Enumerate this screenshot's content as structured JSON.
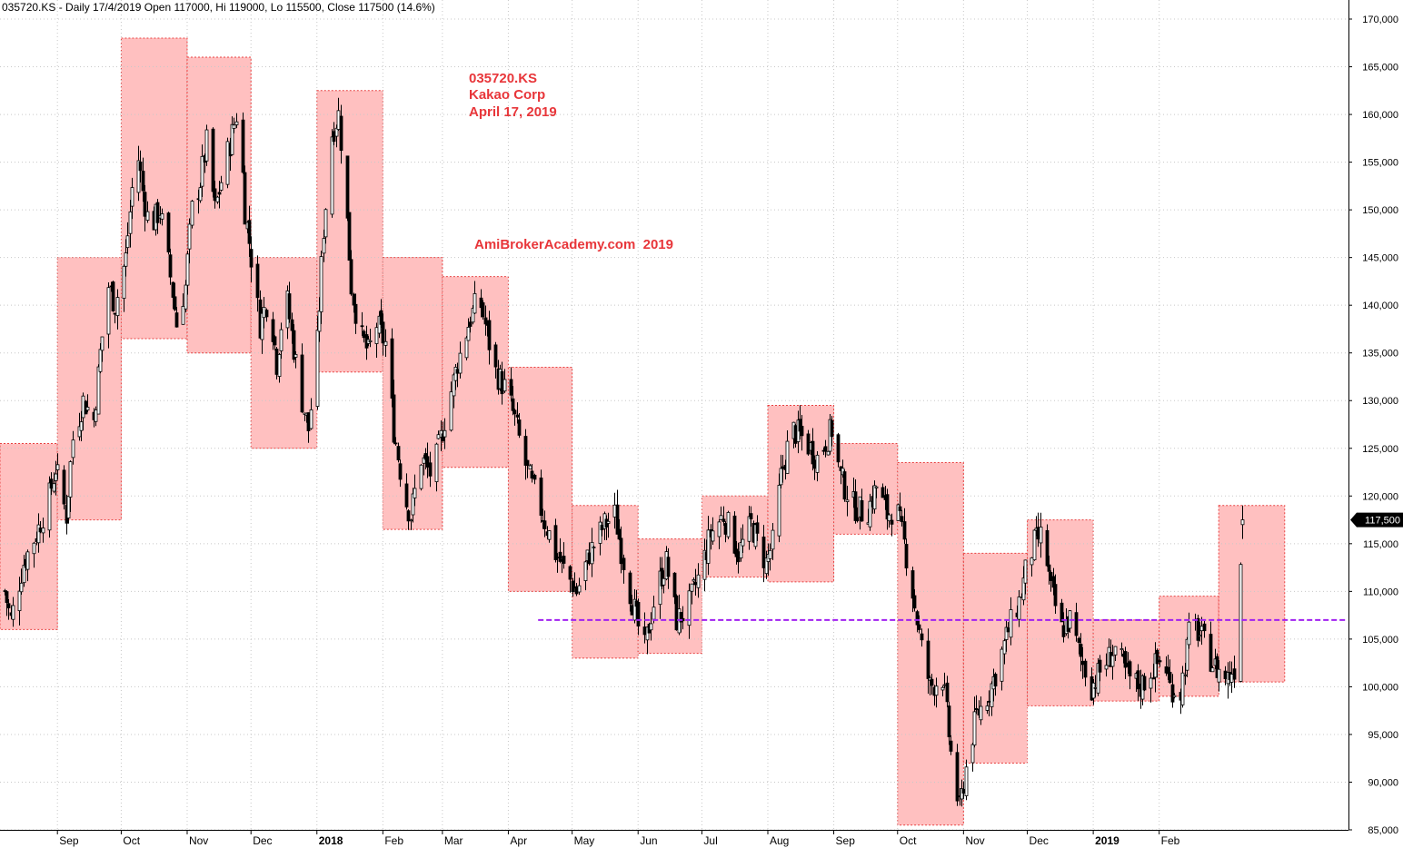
{
  "header": {
    "title": "035720.KS - Daily 17/4/2019 Open 117000, Hi 119000, Lo 115500, Close 117500 (14.6%)"
  },
  "annotations": {
    "ticker": "035720.KS",
    "company": "Kakao Corp",
    "date": "April 17, 2019",
    "watermark": "AmiBrokerAcademy.com  2019"
  },
  "colors": {
    "box_fill": "#ffc0c0",
    "box_border": "#e84040",
    "support_line": "#a020f0",
    "annotation_text": "#e8363a",
    "grid": "#c8c8c8",
    "candle": "#000000"
  },
  "chart_data": {
    "type": "candlestick",
    "ylim": [
      85000,
      172000
    ],
    "y_ticks": [
      {
        "value": 85000,
        "label": "85,000"
      },
      {
        "value": 90000,
        "label": "90,000"
      },
      {
        "value": 95000,
        "label": "95,000"
      },
      {
        "value": 100000,
        "label": "100,000"
      },
      {
        "value": 105000,
        "label": "105,000"
      },
      {
        "value": 110000,
        "label": "110,000"
      },
      {
        "value": 115000,
        "label": "115,000"
      },
      {
        "value": 120000,
        "label": "120,000"
      },
      {
        "value": 125000,
        "label": "125,000"
      },
      {
        "value": 130000,
        "label": "130,000"
      },
      {
        "value": 135000,
        "label": "135,000"
      },
      {
        "value": 140000,
        "label": "140,000"
      },
      {
        "value": 145000,
        "label": "145,000"
      },
      {
        "value": 150000,
        "label": "150,000"
      },
      {
        "value": 155000,
        "label": "155,000"
      },
      {
        "value": 160000,
        "label": "160,000"
      },
      {
        "value": 165000,
        "label": "165,000"
      },
      {
        "value": 170000,
        "label": "170,000"
      }
    ],
    "x_ticks": [
      {
        "date": "2017-09-01",
        "label": "Sep",
        "bold": false
      },
      {
        "date": "2017-10-01",
        "label": "Oct",
        "bold": false
      },
      {
        "date": "2017-11-01",
        "label": "Nov",
        "bold": false
      },
      {
        "date": "2017-12-01",
        "label": "Dec",
        "bold": false
      },
      {
        "date": "2018-01-01",
        "label": "2018",
        "bold": true
      },
      {
        "date": "2018-02-01",
        "label": "Feb",
        "bold": false
      },
      {
        "date": "2018-03-01",
        "label": "Mar",
        "bold": false
      },
      {
        "date": "2018-04-01",
        "label": "Apr",
        "bold": false
      },
      {
        "date": "2018-05-01",
        "label": "May",
        "bold": false
      },
      {
        "date": "2018-06-01",
        "label": "Jun",
        "bold": false
      },
      {
        "date": "2018-07-01",
        "label": "Jul",
        "bold": false
      },
      {
        "date": "2018-08-01",
        "label": "Aug",
        "bold": false
      },
      {
        "date": "2018-09-01",
        "label": "Sep",
        "bold": false
      },
      {
        "date": "2018-10-01",
        "label": "Oct",
        "bold": false
      },
      {
        "date": "2018-11-01",
        "label": "Nov",
        "bold": false
      },
      {
        "date": "2018-12-01",
        "label": "Dec",
        "bold": false
      },
      {
        "date": "2019-01-01",
        "label": "2019",
        "bold": true
      },
      {
        "date": "2019-02-01",
        "label": "Feb",
        "bold": false
      }
    ],
    "x_start": "2017-08-05",
    "x_end": "2019-05-01",
    "last_price": {
      "value": 117500,
      "label": "117,500"
    },
    "support_line": {
      "value": 107000,
      "from": "2018-04-15",
      "to": "2019-04-30"
    },
    "monthly_boxes": [
      {
        "from": "2017-08-05",
        "to": "2017-08-31",
        "low": 106000,
        "high": 125500
      },
      {
        "from": "2017-09-01",
        "to": "2017-09-30",
        "low": 117500,
        "high": 145000
      },
      {
        "from": "2017-10-01",
        "to": "2017-10-31",
        "low": 136500,
        "high": 168000
      },
      {
        "from": "2017-11-01",
        "to": "2017-11-30",
        "low": 135000,
        "high": 166000
      },
      {
        "from": "2017-12-01",
        "to": "2017-12-31",
        "low": 125000,
        "high": 145000
      },
      {
        "from": "2018-01-01",
        "to": "2018-01-31",
        "low": 133000,
        "high": 162500
      },
      {
        "from": "2018-02-01",
        "to": "2018-02-28",
        "low": 116500,
        "high": 145000
      },
      {
        "from": "2018-03-01",
        "to": "2018-03-31",
        "low": 123000,
        "high": 143000
      },
      {
        "from": "2018-04-01",
        "to": "2018-04-30",
        "low": 110000,
        "high": 133500
      },
      {
        "from": "2018-05-01",
        "to": "2018-05-31",
        "low": 103000,
        "high": 119000
      },
      {
        "from": "2018-06-01",
        "to": "2018-06-30",
        "low": 103500,
        "high": 115500
      },
      {
        "from": "2018-07-01",
        "to": "2018-07-31",
        "low": 111500,
        "high": 120000
      },
      {
        "from": "2018-08-01",
        "to": "2018-08-31",
        "low": 111000,
        "high": 129500
      },
      {
        "from": "2018-09-01",
        "to": "2018-09-30",
        "low": 116000,
        "high": 125500
      },
      {
        "from": "2018-10-01",
        "to": "2018-10-31",
        "low": 85500,
        "high": 123500
      },
      {
        "from": "2018-11-01",
        "to": "2018-11-30",
        "low": 92000,
        "high": 114000
      },
      {
        "from": "2018-12-01",
        "to": "2018-12-31",
        "low": 98000,
        "high": 117500
      },
      {
        "from": "2019-01-01",
        "to": "2019-01-31",
        "low": 98500,
        "high": 107000
      },
      {
        "from": "2019-02-01",
        "to": "2019-02-28",
        "low": 99000,
        "high": 109500
      },
      {
        "from": "2019-03-01",
        "to": "2019-03-31",
        "low": 100500,
        "high": 119000
      }
    ],
    "close_path": [
      [
        "2017-08-07",
        110000
      ],
      [
        "2017-08-10",
        107000
      ],
      [
        "2017-08-16",
        113000
      ],
      [
        "2017-08-22",
        116000
      ],
      [
        "2017-08-28",
        120000
      ],
      [
        "2017-08-31",
        123000
      ],
      [
        "2017-09-05",
        118000
      ],
      [
        "2017-09-08",
        126000
      ],
      [
        "2017-09-13",
        130000
      ],
      [
        "2017-09-18",
        128000
      ],
      [
        "2017-09-21",
        135000
      ],
      [
        "2017-09-25",
        142000
      ],
      [
        "2017-09-28",
        140000
      ],
      [
        "2017-10-03",
        145000
      ],
      [
        "2017-10-08",
        157000
      ],
      [
        "2017-10-11",
        152000
      ],
      [
        "2017-10-14",
        148000
      ],
      [
        "2017-10-19",
        150000
      ],
      [
        "2017-10-24",
        143000
      ],
      [
        "2017-10-27",
        138000
      ],
      [
        "2017-10-31",
        142000
      ],
      [
        "2017-11-03",
        150000
      ],
      [
        "2017-11-07",
        153000
      ],
      [
        "2017-11-10",
        157000
      ],
      [
        "2017-11-14",
        150000
      ],
      [
        "2017-11-18",
        154000
      ],
      [
        "2017-11-22",
        158000
      ],
      [
        "2017-11-25",
        161000
      ],
      [
        "2017-11-28",
        150000
      ],
      [
        "2017-12-01",
        145000
      ],
      [
        "2017-12-05",
        138000
      ],
      [
        "2017-12-09",
        141000
      ],
      [
        "2017-12-13",
        134000
      ],
      [
        "2017-12-17",
        142000
      ],
      [
        "2017-12-20",
        137000
      ],
      [
        "2017-12-24",
        131000
      ],
      [
        "2017-12-28",
        127000
      ],
      [
        "2018-01-01",
        136000
      ],
      [
        "2018-01-04",
        148000
      ],
      [
        "2018-01-08",
        158000
      ],
      [
        "2018-01-11",
        160000
      ],
      [
        "2018-01-14",
        152000
      ],
      [
        "2018-01-17",
        142000
      ],
      [
        "2018-01-21",
        137000
      ],
      [
        "2018-01-25",
        135000
      ],
      [
        "2018-01-29",
        138000
      ],
      [
        "2018-02-02",
        136000
      ],
      [
        "2018-02-06",
        127000
      ],
      [
        "2018-02-11",
        120000
      ],
      [
        "2018-02-14",
        118000
      ],
      [
        "2018-02-19",
        124000
      ],
      [
        "2018-02-24",
        122000
      ],
      [
        "2018-02-28",
        126000
      ],
      [
        "2018-03-04",
        130000
      ],
      [
        "2018-03-08",
        134000
      ],
      [
        "2018-03-13",
        138000
      ],
      [
        "2018-03-18",
        141000
      ],
      [
        "2018-03-22",
        137000
      ],
      [
        "2018-03-26",
        133000
      ],
      [
        "2018-03-31",
        131000
      ],
      [
        "2018-04-04",
        128000
      ],
      [
        "2018-04-08",
        124000
      ],
      [
        "2018-04-12",
        121000
      ],
      [
        "2018-04-17",
        118000
      ],
      [
        "2018-04-23",
        114000
      ],
      [
        "2018-04-28",
        112000
      ],
      [
        "2018-05-03",
        110000
      ],
      [
        "2018-05-09",
        114000
      ],
      [
        "2018-05-16",
        117000
      ],
      [
        "2018-05-21",
        118000
      ],
      [
        "2018-05-26",
        112000
      ],
      [
        "2018-05-31",
        107000
      ],
      [
        "2018-06-04",
        104000
      ],
      [
        "2018-06-09",
        110000
      ],
      [
        "2018-06-14",
        113000
      ],
      [
        "2018-06-19",
        107000
      ],
      [
        "2018-06-24",
        108000
      ],
      [
        "2018-06-30",
        112000
      ],
      [
        "2018-07-05",
        116000
      ],
      [
        "2018-07-11",
        118000
      ],
      [
        "2018-07-18",
        114000
      ],
      [
        "2018-07-24",
        117000
      ],
      [
        "2018-07-31",
        113000
      ],
      [
        "2018-08-03",
        115000
      ],
      [
        "2018-08-07",
        122000
      ],
      [
        "2018-08-12",
        127000
      ],
      [
        "2018-08-18",
        126000
      ],
      [
        "2018-08-24",
        124000
      ],
      [
        "2018-08-31",
        127000
      ],
      [
        "2018-09-04",
        122000
      ],
      [
        "2018-09-10",
        119000
      ],
      [
        "2018-09-16",
        118000
      ],
      [
        "2018-09-21",
        121000
      ],
      [
        "2018-09-26",
        118000
      ],
      [
        "2018-09-30",
        119000
      ],
      [
        "2018-10-04",
        115000
      ],
      [
        "2018-10-08",
        110000
      ],
      [
        "2018-10-12",
        104000
      ],
      [
        "2018-10-16",
        100000
      ],
      [
        "2018-10-22",
        101000
      ],
      [
        "2018-10-26",
        93000
      ],
      [
        "2018-10-30",
        87000
      ],
      [
        "2018-11-03",
        93000
      ],
      [
        "2018-11-07",
        97000
      ],
      [
        "2018-11-12",
        99000
      ],
      [
        "2018-11-17",
        102000
      ],
      [
        "2018-11-22",
        106000
      ],
      [
        "2018-11-27",
        109000
      ],
      [
        "2018-11-30",
        112000
      ],
      [
        "2018-12-04",
        115000
      ],
      [
        "2018-12-08",
        116000
      ],
      [
        "2018-12-12",
        110000
      ],
      [
        "2018-12-17",
        106000
      ],
      [
        "2018-12-21",
        107000
      ],
      [
        "2018-12-26",
        103000
      ],
      [
        "2018-12-31",
        100000
      ],
      [
        "2019-01-05",
        102000
      ],
      [
        "2019-01-11",
        104000
      ],
      [
        "2019-01-17",
        101000
      ],
      [
        "2019-01-23",
        100000
      ],
      [
        "2019-01-29",
        102000
      ],
      [
        "2019-02-03",
        103000
      ],
      [
        "2019-02-06",
        100000
      ],
      [
        "2019-02-11",
        99500
      ],
      [
        "2019-02-16",
        107000
      ],
      [
        "2019-02-21",
        105000
      ],
      [
        "2019-02-27",
        102000
      ],
      [
        "2019-03-05",
        101000
      ],
      [
        "2019-03-08",
        102000
      ],
      [
        "2019-03-12",
        117500
      ]
    ]
  }
}
